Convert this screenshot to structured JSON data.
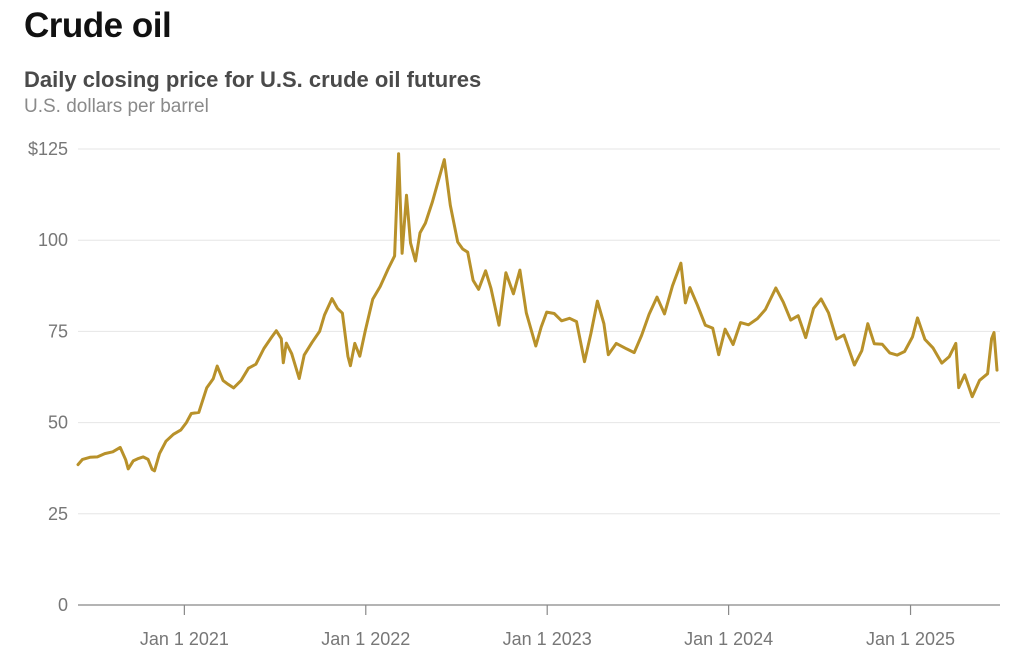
{
  "header": {
    "title": "Crude oil",
    "subtitle": "Daily closing price for U.S. crude oil futures",
    "units": "U.S. dollars per barrel"
  },
  "colors": {
    "line": "#b8912a",
    "grid": "#e6e6e6",
    "axis": "#888888",
    "label": "#777777"
  },
  "chart_data": {
    "type": "line",
    "title": "Crude oil",
    "subtitle": "Daily closing price for U.S. crude oil futures",
    "ylabel": "U.S. dollars per barrel",
    "xlabel": "",
    "ylim": [
      0,
      125
    ],
    "xlim": [
      "2020-06-01",
      "2025-06-30"
    ],
    "grid": true,
    "y_ticks": [
      0,
      25,
      50,
      75,
      100,
      125
    ],
    "y_tick_labels": [
      "0",
      "25",
      "50",
      "75",
      "100",
      "$125"
    ],
    "x_ticks": [
      "2021-01-01",
      "2022-01-01",
      "2023-01-01",
      "2024-01-01",
      "2025-01-01"
    ],
    "x_tick_labels": [
      "Jan 1 2021",
      "Jan 1 2022",
      "Jan 1 2023",
      "Jan 1 2024",
      "Jan 1 2025"
    ],
    "series": [
      {
        "name": "",
        "points": [
          [
            "2020-06-01",
            38.5
          ],
          [
            "2020-06-10",
            39.9
          ],
          [
            "2020-06-25",
            40.5
          ],
          [
            "2020-07-10",
            40.6
          ],
          [
            "2020-07-25",
            41.5
          ],
          [
            "2020-08-10",
            42.0
          ],
          [
            "2020-08-25",
            43.2
          ],
          [
            "2020-09-05",
            39.8
          ],
          [
            "2020-09-10",
            37.3
          ],
          [
            "2020-09-20",
            39.5
          ],
          [
            "2020-10-01",
            40.2
          ],
          [
            "2020-10-10",
            40.6
          ],
          [
            "2020-10-20",
            39.9
          ],
          [
            "2020-10-28",
            37.2
          ],
          [
            "2020-11-02",
            36.8
          ],
          [
            "2020-11-12",
            41.5
          ],
          [
            "2020-11-25",
            44.9
          ],
          [
            "2020-12-10",
            46.8
          ],
          [
            "2020-12-25",
            48.0
          ],
          [
            "2021-01-05",
            50.0
          ],
          [
            "2021-01-15",
            52.5
          ],
          [
            "2021-01-30",
            52.8
          ],
          [
            "2021-02-15",
            59.5
          ],
          [
            "2021-02-28",
            62.0
          ],
          [
            "2021-03-08",
            65.5
          ],
          [
            "2021-03-20",
            61.5
          ],
          [
            "2021-03-30",
            60.5
          ],
          [
            "2021-04-10",
            59.5
          ],
          [
            "2021-04-25",
            61.5
          ],
          [
            "2021-05-10",
            64.9
          ],
          [
            "2021-05-25",
            66.0
          ],
          [
            "2021-06-10",
            70.3
          ],
          [
            "2021-06-25",
            73.3
          ],
          [
            "2021-07-05",
            75.2
          ],
          [
            "2021-07-15",
            73.0
          ],
          [
            "2021-07-19",
            66.4
          ],
          [
            "2021-07-25",
            71.8
          ],
          [
            "2021-08-05",
            68.9
          ],
          [
            "2021-08-20",
            62.1
          ],
          [
            "2021-08-30",
            68.5
          ],
          [
            "2021-09-15",
            72.0
          ],
          [
            "2021-09-30",
            75.0
          ],
          [
            "2021-10-10",
            79.5
          ],
          [
            "2021-10-25",
            84.0
          ],
          [
            "2021-11-05",
            81.3
          ],
          [
            "2021-11-15",
            80.0
          ],
          [
            "2021-11-26",
            68.2
          ],
          [
            "2021-12-01",
            65.6
          ],
          [
            "2021-12-10",
            71.7
          ],
          [
            "2021-12-20",
            68.2
          ],
          [
            "2021-12-31",
            75.2
          ],
          [
            "2022-01-15",
            83.8
          ],
          [
            "2022-01-30",
            87.3
          ],
          [
            "2022-02-15",
            92.1
          ],
          [
            "2022-02-28",
            95.7
          ],
          [
            "2022-03-08",
            123.7
          ],
          [
            "2022-03-15",
            96.4
          ],
          [
            "2022-03-24",
            112.3
          ],
          [
            "2022-04-01",
            99.3
          ],
          [
            "2022-04-11",
            94.3
          ],
          [
            "2022-04-20",
            102.0
          ],
          [
            "2022-05-01",
            104.7
          ],
          [
            "2022-05-15",
            110.5
          ],
          [
            "2022-06-08",
            122.1
          ],
          [
            "2022-06-20",
            109.6
          ],
          [
            "2022-07-05",
            99.5
          ],
          [
            "2022-07-15",
            97.6
          ],
          [
            "2022-07-25",
            96.7
          ],
          [
            "2022-08-05",
            89.0
          ],
          [
            "2022-08-16",
            86.5
          ],
          [
            "2022-08-30",
            91.6
          ],
          [
            "2022-09-10",
            86.8
          ],
          [
            "2022-09-26",
            76.7
          ],
          [
            "2022-10-10",
            91.1
          ],
          [
            "2022-10-25",
            85.3
          ],
          [
            "2022-11-07",
            91.8
          ],
          [
            "2022-11-20",
            80.1
          ],
          [
            "2022-12-09",
            71.0
          ],
          [
            "2022-12-20",
            76.2
          ],
          [
            "2022-12-31",
            80.3
          ],
          [
            "2023-01-15",
            79.9
          ],
          [
            "2023-01-30",
            77.9
          ],
          [
            "2023-02-15",
            78.6
          ],
          [
            "2023-03-01",
            77.7
          ],
          [
            "2023-03-17",
            66.7
          ],
          [
            "2023-03-30",
            74.4
          ],
          [
            "2023-04-12",
            83.3
          ],
          [
            "2023-04-25",
            77.1
          ],
          [
            "2023-05-04",
            68.6
          ],
          [
            "2023-05-20",
            71.7
          ],
          [
            "2023-06-10",
            70.2
          ],
          [
            "2023-06-25",
            69.2
          ],
          [
            "2023-07-10",
            73.9
          ],
          [
            "2023-07-25",
            79.7
          ],
          [
            "2023-08-10",
            84.4
          ],
          [
            "2023-08-25",
            79.8
          ],
          [
            "2023-09-10",
            87.5
          ],
          [
            "2023-09-27",
            93.7
          ],
          [
            "2023-10-06",
            82.8
          ],
          [
            "2023-10-15",
            87.0
          ],
          [
            "2023-10-30",
            82.3
          ],
          [
            "2023-11-15",
            76.7
          ],
          [
            "2023-11-30",
            75.9
          ],
          [
            "2023-12-12",
            68.6
          ],
          [
            "2023-12-25",
            75.6
          ],
          [
            "2024-01-10",
            71.4
          ],
          [
            "2024-01-25",
            77.4
          ],
          [
            "2024-02-10",
            76.8
          ],
          [
            "2024-02-28",
            78.5
          ],
          [
            "2024-03-15",
            81.0
          ],
          [
            "2024-04-05",
            86.9
          ],
          [
            "2024-04-20",
            83.0
          ],
          [
            "2024-05-05",
            78.1
          ],
          [
            "2024-05-20",
            79.3
          ],
          [
            "2024-06-04",
            73.3
          ],
          [
            "2024-06-20",
            81.3
          ],
          [
            "2024-07-05",
            83.9
          ],
          [
            "2024-07-20",
            80.1
          ],
          [
            "2024-08-05",
            72.9
          ],
          [
            "2024-08-20",
            74.0
          ],
          [
            "2024-09-10",
            65.8
          ],
          [
            "2024-09-25",
            69.7
          ],
          [
            "2024-10-07",
            77.1
          ],
          [
            "2024-10-20",
            71.6
          ],
          [
            "2024-11-05",
            71.5
          ],
          [
            "2024-11-20",
            69.1
          ],
          [
            "2024-12-05",
            68.5
          ],
          [
            "2024-12-20",
            69.5
          ],
          [
            "2025-01-05",
            73.5
          ],
          [
            "2025-01-15",
            78.7
          ],
          [
            "2025-01-30",
            72.8
          ],
          [
            "2025-02-15",
            70.5
          ],
          [
            "2025-03-05",
            66.3
          ],
          [
            "2025-03-20",
            68.1
          ],
          [
            "2025-04-02",
            71.7
          ],
          [
            "2025-04-08",
            59.6
          ],
          [
            "2025-04-20",
            63.1
          ],
          [
            "2025-05-05",
            57.1
          ],
          [
            "2025-05-20",
            61.6
          ],
          [
            "2025-06-05",
            63.4
          ],
          [
            "2025-06-13",
            73.0
          ],
          [
            "2025-06-18",
            74.7
          ],
          [
            "2025-06-24",
            64.4
          ]
        ]
      }
    ]
  }
}
